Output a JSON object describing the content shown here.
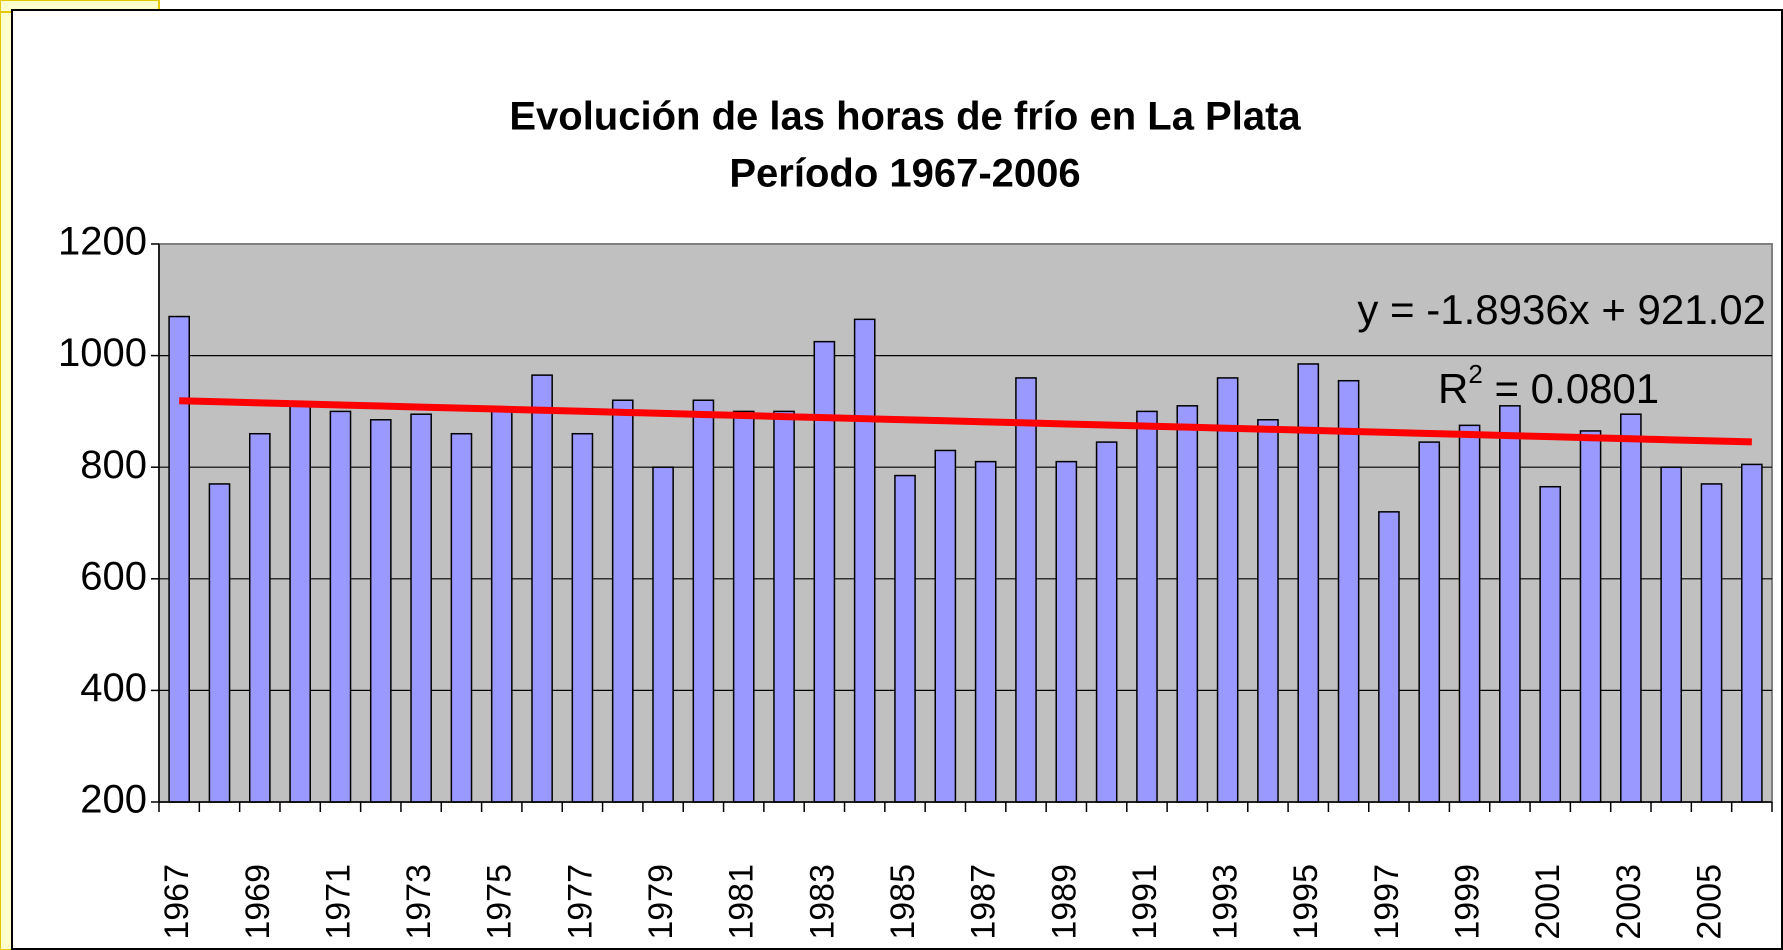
{
  "chart_data": {
    "type": "bar",
    "title": [
      "Evolución de las horas de frío en La Plata",
      "Período 1967-2006"
    ],
    "categories": [
      "1967",
      null,
      "1969",
      null,
      "1971",
      null,
      "1973",
      null,
      "1975",
      null,
      "1977",
      null,
      "1979",
      null,
      "1981",
      null,
      "1983",
      null,
      "1985",
      null,
      "1987",
      null,
      "1989",
      null,
      "1991",
      null,
      "1993",
      null,
      "1995",
      null,
      "1997",
      null,
      "1999",
      null,
      "2001",
      null,
      "2003",
      null,
      "2005",
      null
    ],
    "values": [
      1070,
      770,
      860,
      910,
      900,
      885,
      895,
      860,
      905,
      965,
      860,
      920,
      800,
      920,
      900,
      900,
      1025,
      1065,
      785,
      830,
      810,
      960,
      810,
      845,
      900,
      910,
      960,
      885,
      985,
      955,
      720,
      845,
      875,
      910,
      765,
      865,
      895,
      800,
      770,
      805
    ],
    "color": "#9999ff",
    "trend": {
      "color": "#ff0000",
      "values": [
        919.13,
        917.23,
        915.34,
        913.45,
        911.55,
        909.66,
        907.77,
        905.87,
        903.98,
        902.08,
        900.19,
        898.3,
        896.4,
        894.51,
        892.62,
        890.72,
        888.83,
        886.94,
        885.04,
        883.15,
        881.26,
        879.36,
        877.47,
        875.57,
        873.68,
        871.79,
        869.89,
        868.0,
        866.11,
        864.21,
        862.32,
        860.43,
        858.53,
        856.64,
        854.74,
        852.85,
        850.96,
        849.06,
        847.17,
        845.28
      ]
    },
    "equation": "y = -1.8936x + 921.02",
    "r_squared": [
      "R",
      "2",
      " = 0.0801"
    ],
    "ylim": [
      200,
      1200
    ],
    "yticks": [
      200,
      400,
      600,
      800,
      1000,
      1200
    ],
    "grid": true
  }
}
